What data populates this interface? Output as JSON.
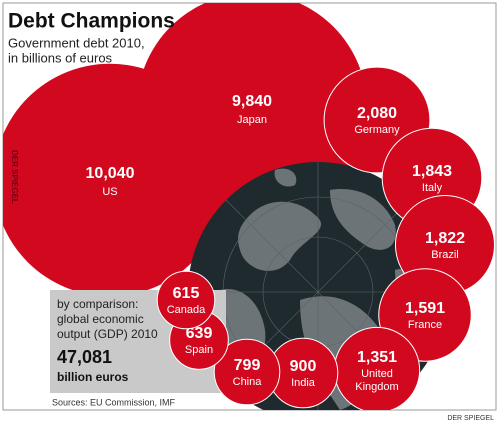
{
  "chart_data": {
    "type": "bubble",
    "title": "Debt Champions",
    "subtitle": [
      "Government debt 2010,",
      "in billions of euros"
    ],
    "categories": [
      "US",
      "Japan",
      "Germany",
      "Italy",
      "Brazil",
      "France",
      "United Kingdom",
      "India",
      "China",
      "Spain",
      "Canada"
    ],
    "values": [
      10040,
      9840,
      2080,
      1843,
      1822,
      1591,
      1351,
      900,
      799,
      639,
      615
    ],
    "value_labels": [
      "10,040",
      "9,840",
      "2,080",
      "1,843",
      "1,822",
      "1,591",
      "1,351",
      "900",
      "799",
      "639",
      "615"
    ],
    "color": "#d2081f",
    "comparison": {
      "lines": [
        "by comparison:",
        "global economic",
        "output (GDP) 2010"
      ],
      "value_label": "47,081",
      "unit": "billion euros"
    },
    "source": "Sources: EU Commission, IMF",
    "credit": "DER SPIEGEL"
  }
}
